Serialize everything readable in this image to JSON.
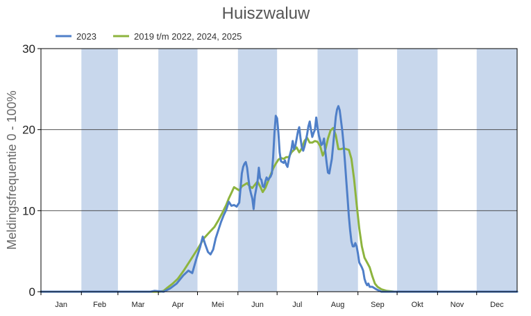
{
  "chart_data": {
    "type": "line",
    "title": "Huiszwaluw",
    "ylabel": "Meldingsfrequentie 0 - 100%",
    "xlabel": "",
    "ylim": [
      0,
      30
    ],
    "yticks": [
      0,
      10,
      20,
      30
    ],
    "months": [
      "Jan",
      "Feb",
      "Mar",
      "Apr",
      "Mei",
      "Jun",
      "Jul",
      "Aug",
      "Sep",
      "Okt",
      "Nov",
      "Dec"
    ],
    "month_starts": [
      1,
      32,
      60,
      91,
      121,
      152,
      182,
      213,
      244,
      274,
      305,
      335
    ],
    "xlim": [
      1,
      366
    ],
    "shaded_months": [
      "Feb",
      "Apr",
      "Jun",
      "Aug",
      "Okt",
      "Dec"
    ],
    "grid": "horizontal",
    "legend_position": "top-left",
    "series": [
      {
        "name": "2023",
        "color": "#4f7fc8",
        "points": [
          [
            1,
            0
          ],
          [
            85,
            0
          ],
          [
            88,
            0.1
          ],
          [
            95,
            0
          ],
          [
            100,
            0.4
          ],
          [
            105,
            1.0
          ],
          [
            110,
            2.0
          ],
          [
            114,
            2.6
          ],
          [
            117,
            2.3
          ],
          [
            120,
            4.0
          ],
          [
            123,
            5.5
          ],
          [
            125,
            6.8
          ],
          [
            127,
            5.8
          ],
          [
            129,
            4.9
          ],
          [
            131,
            4.6
          ],
          [
            133,
            5.2
          ],
          [
            135,
            6.6
          ],
          [
            137,
            7.6
          ],
          [
            139,
            8.6
          ],
          [
            141,
            9.4
          ],
          [
            143,
            10.1
          ],
          [
            145,
            11.1
          ],
          [
            147,
            10.6
          ],
          [
            149,
            10.7
          ],
          [
            151,
            10.5
          ],
          [
            153,
            11.0
          ],
          [
            154,
            12.8
          ],
          [
            155,
            14.6
          ],
          [
            156,
            15.4
          ],
          [
            157,
            15.8
          ],
          [
            158,
            16.0
          ],
          [
            159,
            15.3
          ],
          [
            160,
            14.0
          ],
          [
            161,
            12.8
          ],
          [
            162,
            12.1
          ],
          [
            163,
            11.5
          ],
          [
            164,
            10.2
          ],
          [
            165,
            11.8
          ],
          [
            166,
            12.7
          ],
          [
            167,
            13.6
          ],
          [
            168,
            15.3
          ],
          [
            169,
            14.0
          ],
          [
            170,
            13.8
          ],
          [
            171,
            13.0
          ],
          [
            172,
            12.9
          ],
          [
            173,
            13.6
          ],
          [
            174,
            14.1
          ],
          [
            175,
            13.8
          ],
          [
            176,
            14.0
          ],
          [
            177,
            14.2
          ],
          [
            178,
            14.6
          ],
          [
            179,
            16.6
          ],
          [
            180,
            19.6
          ],
          [
            181,
            21.7
          ],
          [
            182,
            21.4
          ],
          [
            183,
            19.6
          ],
          [
            184,
            17.2
          ],
          [
            185,
            16.1
          ],
          [
            186,
            16.0
          ],
          [
            187,
            15.9
          ],
          [
            188,
            16.2
          ],
          [
            189,
            15.7
          ],
          [
            190,
            15.4
          ],
          [
            191,
            16.3
          ],
          [
            192,
            17.0
          ],
          [
            193,
            17.6
          ],
          [
            194,
            18.6
          ],
          [
            195,
            17.6
          ],
          [
            196,
            18.0
          ],
          [
            197,
            18.9
          ],
          [
            198,
            19.8
          ],
          [
            199,
            20.3
          ],
          [
            200,
            18.9
          ],
          [
            201,
            17.8
          ],
          [
            202,
            17.4
          ],
          [
            203,
            17.9
          ],
          [
            204,
            18.6
          ],
          [
            205,
            19.4
          ],
          [
            206,
            20.4
          ],
          [
            207,
            21.0
          ],
          [
            208,
            20.0
          ],
          [
            209,
            19.1
          ],
          [
            210,
            19.6
          ],
          [
            211,
            20.0
          ],
          [
            212,
            21.5
          ],
          [
            213,
            20.3
          ],
          [
            214,
            19.3
          ],
          [
            215,
            18.7
          ],
          [
            216,
            18.1
          ],
          [
            217,
            18.3
          ],
          [
            218,
            18.9
          ],
          [
            219,
            17.3
          ],
          [
            220,
            15.9
          ],
          [
            221,
            14.7
          ],
          [
            222,
            14.6
          ],
          [
            223,
            15.5
          ],
          [
            224,
            16.4
          ],
          [
            225,
            18.1
          ],
          [
            226,
            19.9
          ],
          [
            227,
            21.6
          ],
          [
            228,
            22.5
          ],
          [
            229,
            22.9
          ],
          [
            230,
            22.4
          ],
          [
            231,
            21.1
          ],
          [
            232,
            19.8
          ],
          [
            233,
            18.2
          ],
          [
            234,
            16.1
          ],
          [
            235,
            13.8
          ],
          [
            236,
            11.6
          ],
          [
            237,
            9.3
          ],
          [
            238,
            7.6
          ],
          [
            239,
            6.2
          ],
          [
            240,
            5.6
          ],
          [
            241,
            5.6
          ],
          [
            242,
            6.0
          ],
          [
            243,
            5.6
          ],
          [
            244,
            4.7
          ],
          [
            245,
            3.6
          ],
          [
            246,
            3.3
          ],
          [
            247,
            3.0
          ],
          [
            248,
            2.6
          ],
          [
            249,
            1.6
          ],
          [
            250,
            1.1
          ],
          [
            251,
            0.8
          ],
          [
            252,
            1.0
          ],
          [
            253,
            0.6
          ],
          [
            255,
            0.6
          ],
          [
            258,
            0.3
          ],
          [
            262,
            0
          ],
          [
            366,
            0
          ]
        ]
      },
      {
        "name": "2019 t/m 2022, 2024, 2025",
        "color": "#8db43e",
        "points": [
          [
            1,
            0
          ],
          [
            92,
            0
          ],
          [
            95,
            0.1
          ],
          [
            98,
            0.5
          ],
          [
            102,
            1.0
          ],
          [
            106,
            1.6
          ],
          [
            110,
            2.5
          ],
          [
            114,
            3.5
          ],
          [
            118,
            4.5
          ],
          [
            122,
            5.5
          ],
          [
            126,
            6.6
          ],
          [
            130,
            7.3
          ],
          [
            134,
            8.0
          ],
          [
            137,
            8.8
          ],
          [
            140,
            9.7
          ],
          [
            143,
            10.7
          ],
          [
            145,
            11.5
          ],
          [
            147,
            12.2
          ],
          [
            149,
            12.9
          ],
          [
            151,
            12.7
          ],
          [
            153,
            12.5
          ],
          [
            155,
            13.0
          ],
          [
            157,
            13.2
          ],
          [
            159,
            13.4
          ],
          [
            161,
            13.0
          ],
          [
            163,
            12.8
          ],
          [
            165,
            13.2
          ],
          [
            167,
            13.6
          ],
          [
            169,
            13.0
          ],
          [
            171,
            12.3
          ],
          [
            173,
            12.8
          ],
          [
            175,
            13.6
          ],
          [
            177,
            14.4
          ],
          [
            179,
            15.2
          ],
          [
            181,
            15.8
          ],
          [
            183,
            16.3
          ],
          [
            185,
            16.5
          ],
          [
            187,
            16.4
          ],
          [
            189,
            16.6
          ],
          [
            191,
            16.6
          ],
          [
            193,
            17.2
          ],
          [
            195,
            17.5
          ],
          [
            197,
            17.8
          ],
          [
            199,
            17.2
          ],
          [
            201,
            17.7
          ],
          [
            203,
            18.6
          ],
          [
            205,
            19.0
          ],
          [
            207,
            18.4
          ],
          [
            209,
            18.4
          ],
          [
            211,
            18.6
          ],
          [
            213,
            18.5
          ],
          [
            215,
            18.0
          ],
          [
            217,
            16.8
          ],
          [
            219,
            17.5
          ],
          [
            221,
            18.9
          ],
          [
            223,
            19.9
          ],
          [
            225,
            20.2
          ],
          [
            227,
            19.3
          ],
          [
            229,
            17.6
          ],
          [
            231,
            17.6
          ],
          [
            233,
            17.7
          ],
          [
            235,
            17.6
          ],
          [
            237,
            17.5
          ],
          [
            239,
            16.4
          ],
          [
            241,
            13.9
          ],
          [
            243,
            10.8
          ],
          [
            245,
            7.8
          ],
          [
            247,
            5.6
          ],
          [
            249,
            4.2
          ],
          [
            251,
            3.6
          ],
          [
            253,
            3.0
          ],
          [
            255,
            1.9
          ],
          [
            257,
            1.0
          ],
          [
            259,
            0.6
          ],
          [
            262,
            0.3
          ],
          [
            266,
            0.1
          ],
          [
            272,
            0
          ],
          [
            366,
            0
          ]
        ]
      }
    ]
  }
}
